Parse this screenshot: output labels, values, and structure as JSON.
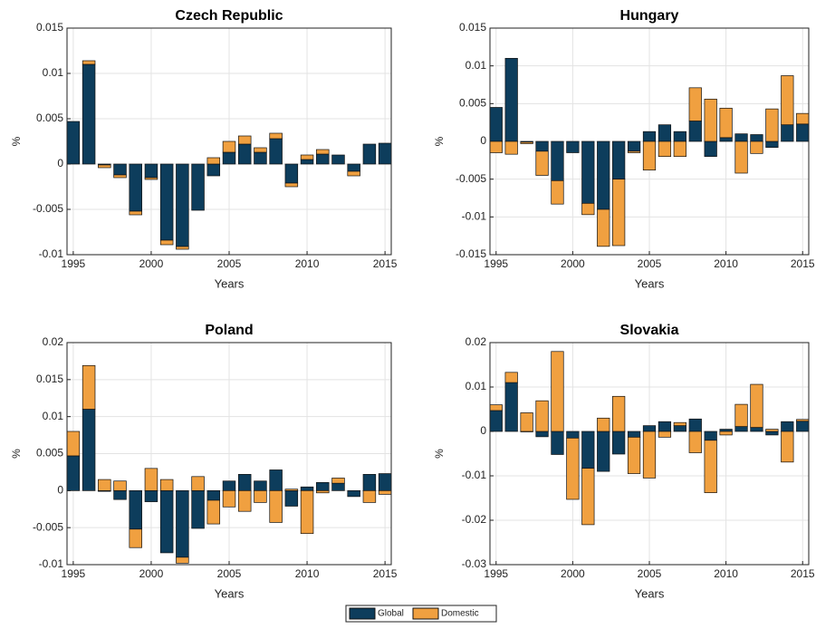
{
  "chart_data": [
    {
      "type": "stacked-bar",
      "title": "Czech Republic",
      "xlabel": "Years",
      "ylabel": "%",
      "x": [
        1995,
        1996,
        1997,
        1998,
        1999,
        2000,
        2001,
        2002,
        2003,
        2004,
        2005,
        2006,
        2007,
        2008,
        2009,
        2010,
        2011,
        2012,
        2013,
        2014,
        2015
      ],
      "series": [
        {
          "name": "Global",
          "color": "#0d3d5c",
          "values": [
            0.0047,
            0.011,
            -0.0001,
            -0.0012,
            -0.0052,
            -0.0015,
            -0.0084,
            -0.0091,
            -0.0051,
            -0.0013,
            0.0013,
            0.0022,
            0.0013,
            0.0028,
            -0.0021,
            0.0005,
            0.0011,
            0.001,
            -0.0008,
            0.0022,
            0.0023
          ]
        },
        {
          "name": "Domestic",
          "color": "#f0a040",
          "values": [
            0,
            0.0004,
            -0.0003,
            -0.0003,
            -0.0004,
            -0.0002,
            -0.0005,
            -0.0003,
            0,
            0.0007,
            0.0012,
            0.0009,
            0.0005,
            0.0006,
            -0.0004,
            0.0005,
            0.0005,
            0,
            -0.0005,
            0,
            0
          ]
        }
      ],
      "xlim": [
        1994.6,
        2015.4
      ],
      "xticks": [
        1995,
        2000,
        2005,
        2010,
        2015
      ],
      "ylim": [
        -0.01,
        0.015
      ],
      "yticks": [
        -0.01,
        -0.005,
        0,
        0.005,
        0.01,
        0.015
      ],
      "grid": true
    },
    {
      "type": "stacked-bar",
      "title": "Hungary",
      "xlabel": "Years",
      "ylabel": "%",
      "x": [
        1995,
        1996,
        1997,
        1998,
        1999,
        2000,
        2001,
        2002,
        2003,
        2004,
        2005,
        2006,
        2007,
        2008,
        2009,
        2010,
        2011,
        2012,
        2013,
        2014,
        2015
      ],
      "series": [
        {
          "name": "Global",
          "color": "#0d3d5c",
          "values": [
            0.0045,
            0.011,
            -0.0001,
            -0.0013,
            -0.0052,
            -0.0015,
            -0.0082,
            -0.009,
            -0.005,
            -0.0013,
            0.0013,
            0.0022,
            0.0013,
            0.0027,
            -0.002,
            0.0005,
            0.001,
            0.0009,
            -0.0008,
            0.0022,
            0.0023
          ]
        },
        {
          "name": "Domestic",
          "color": "#f0a040",
          "values": [
            -0.0015,
            -0.0017,
            -0.0002,
            -0.0032,
            -0.0031,
            0,
            -0.0015,
            -0.0049,
            -0.0088,
            -0.0002,
            -0.0038,
            -0.002,
            -0.002,
            0.0044,
            0.0056,
            0.0039,
            -0.0042,
            -0.0016,
            0.0043,
            0.0065,
            0.0014
          ]
        }
      ],
      "xlim": [
        1994.6,
        2015.4
      ],
      "xticks": [
        1995,
        2000,
        2005,
        2010,
        2015
      ],
      "ylim": [
        -0.015,
        0.015
      ],
      "yticks": [
        -0.015,
        -0.01,
        -0.005,
        0,
        0.005,
        0.01,
        0.015
      ],
      "grid": true
    },
    {
      "type": "stacked-bar",
      "title": "Poland",
      "xlabel": "Years",
      "ylabel": "%",
      "x": [
        1995,
        1996,
        1997,
        1998,
        1999,
        2000,
        2001,
        2002,
        2003,
        2004,
        2005,
        2006,
        2007,
        2008,
        2009,
        2010,
        2011,
        2012,
        2013,
        2014,
        2015
      ],
      "series": [
        {
          "name": "Global",
          "color": "#0d3d5c",
          "values": [
            0.0047,
            0.011,
            -0.0001,
            -0.0012,
            -0.0052,
            -0.0015,
            -0.0084,
            -0.009,
            -0.0051,
            -0.0013,
            0.0013,
            0.0022,
            0.0013,
            0.0028,
            -0.0021,
            0.0005,
            0.0011,
            0.001,
            -0.0008,
            0.0022,
            0.0023
          ]
        },
        {
          "name": "Domestic",
          "color": "#f0a040",
          "values": [
            0.0033,
            0.0059,
            0.0015,
            0.0013,
            -0.0025,
            0.003,
            0.0015,
            -0.0008,
            0.0019,
            -0.0032,
            -0.0022,
            -0.0028,
            -0.0016,
            -0.0043,
            0.0002,
            -0.0058,
            -0.0003,
            0.0007,
            0,
            -0.0016,
            -0.0005
          ]
        }
      ],
      "xlim": [
        1994.6,
        2015.4
      ],
      "xticks": [
        1995,
        2000,
        2005,
        2010,
        2015
      ],
      "ylim": [
        -0.01,
        0.02
      ],
      "yticks": [
        -0.01,
        -0.005,
        0,
        0.005,
        0.01,
        0.015,
        0.02
      ],
      "grid": true
    },
    {
      "type": "stacked-bar",
      "title": "Slovakia",
      "xlabel": "Years",
      "ylabel": "%",
      "x": [
        1995,
        1996,
        1997,
        1998,
        1999,
        2000,
        2001,
        2002,
        2003,
        2004,
        2005,
        2006,
        2007,
        2008,
        2009,
        2010,
        2011,
        2012,
        2013,
        2014,
        2015
      ],
      "series": [
        {
          "name": "Global",
          "color": "#0d3d5c",
          "values": [
            0.0047,
            0.011,
            -0.0001,
            -0.0012,
            -0.0052,
            -0.0015,
            -0.0083,
            -0.009,
            -0.0051,
            -0.0013,
            0.0013,
            0.0022,
            0.0013,
            0.0028,
            -0.002,
            0.0005,
            0.0011,
            0.0009,
            -0.0008,
            0.0022,
            0.0023
          ]
        },
        {
          "name": "Domestic",
          "color": "#f0a040",
          "values": [
            0.0013,
            0.0023,
            0.0042,
            0.0069,
            0.018,
            -0.0138,
            -0.0127,
            0.003,
            0.0079,
            -0.0082,
            -0.0105,
            -0.0013,
            0.0007,
            -0.0048,
            -0.0118,
            -0.0008,
            0.005,
            0.0097,
            0.0005,
            -0.0069,
            0.0004
          ]
        }
      ],
      "xlim": [
        1994.6,
        2015.4
      ],
      "xticks": [
        1995,
        2000,
        2005,
        2010,
        2015
      ],
      "ylim": [
        -0.03,
        0.02
      ],
      "yticks": [
        -0.03,
        -0.02,
        -0.01,
        0,
        0.01,
        0.02
      ],
      "grid": true
    }
  ]
}
